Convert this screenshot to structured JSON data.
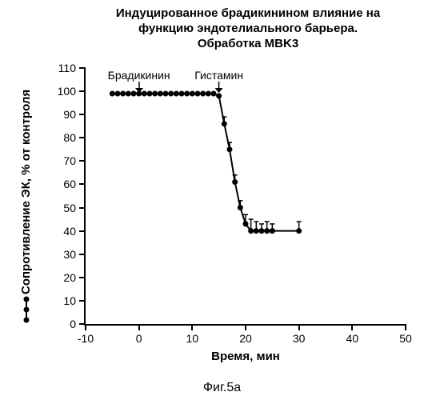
{
  "chart": {
    "type": "line",
    "title_line1": "Индуцированное брадикинином влияние на",
    "title_line2": "функцию эндотелиального барьера.",
    "title_line3": "Обработка MBK3",
    "title_fontsize": 15,
    "xlabel": "Время, мин",
    "ylabel": "Сопротивление ЭК, % от контроля",
    "label_fontsize": 15,
    "tick_fontsize": 14,
    "xlim": [
      -10,
      50
    ],
    "ylim": [
      0,
      110
    ],
    "xticks": [
      -10,
      0,
      10,
      20,
      30,
      40,
      50
    ],
    "yticks": [
      0,
      10,
      20,
      30,
      40,
      50,
      60,
      70,
      80,
      90,
      100,
      110
    ],
    "line_color": "#000000",
    "line_width": 2,
    "marker_style": "circle",
    "marker_size": 7,
    "marker_color": "#000000",
    "background_color": "#ffffff",
    "axis_color": "#000000",
    "series": {
      "x": [
        -5,
        -4,
        -3,
        -2,
        -1,
        0,
        1,
        2,
        3,
        4,
        5,
        6,
        7,
        8,
        9,
        10,
        11,
        12,
        13,
        14,
        15,
        16,
        17,
        18,
        19,
        20,
        21,
        22,
        23,
        24,
        25,
        30
      ],
      "y": [
        99,
        99,
        99,
        99,
        99,
        99,
        99,
        99,
        99,
        99,
        99,
        99,
        99,
        99,
        99,
        99,
        99,
        99,
        99,
        99,
        98,
        86,
        75,
        61,
        50,
        43,
        40,
        40,
        40,
        40,
        40,
        40
      ],
      "err": [
        0,
        0,
        0,
        0,
        0,
        0,
        0,
        0,
        0,
        0,
        0,
        0,
        0,
        0,
        0,
        0,
        0,
        0,
        0,
        0,
        0,
        3,
        3,
        3,
        3,
        4,
        5,
        4,
        3,
        4,
        3,
        4
      ]
    },
    "annotations": [
      {
        "label": "Брадикинин",
        "x": 0
      },
      {
        "label": "Гистамин",
        "x": 15
      }
    ],
    "figure_caption": "Фиг.5а"
  }
}
